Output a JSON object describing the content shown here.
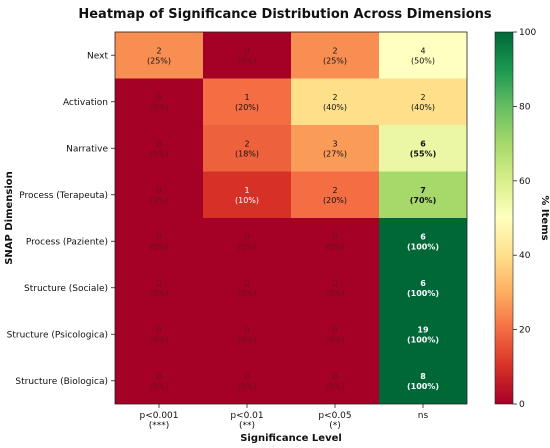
{
  "chart_data": {
    "type": "heatmap",
    "title": "Heatmap of Significance Distribution Across Dimensions",
    "xlabel": "Significance Level",
    "ylabel": "SNAP Dimension",
    "x_categories": [
      "p<0.001\n(***)",
      "p<0.01\n(**)",
      "p<0.05\n(*)",
      "ns"
    ],
    "y_categories": [
      "Next",
      "Activation",
      "Narrative",
      "Process (Terapeuta)",
      "Process (Paziente)",
      "Structure (Sociale)",
      "Structure (Psicologica)",
      "Structure (Biologica)"
    ],
    "counts": [
      [
        2,
        0,
        2,
        4
      ],
      [
        0,
        1,
        2,
        2
      ],
      [
        0,
        2,
        3,
        6
      ],
      [
        0,
        1,
        2,
        7
      ],
      [
        0,
        0,
        0,
        6
      ],
      [
        0,
        0,
        0,
        6
      ],
      [
        0,
        0,
        0,
        19
      ],
      [
        0,
        0,
        0,
        8
      ]
    ],
    "percentages": [
      [
        25,
        0,
        25,
        50
      ],
      [
        0,
        20,
        40,
        40
      ],
      [
        0,
        18,
        27,
        55
      ],
      [
        0,
        10,
        20,
        70
      ],
      [
        0,
        0,
        0,
        100
      ],
      [
        0,
        0,
        0,
        100
      ],
      [
        0,
        0,
        0,
        100
      ],
      [
        0,
        0,
        0,
        100
      ]
    ],
    "bold_cells": [
      [
        2,
        3
      ],
      [
        3,
        3
      ],
      [
        4,
        3
      ],
      [
        5,
        3
      ],
      [
        6,
        3
      ],
      [
        7,
        3
      ]
    ],
    "colorbar": {
      "label": "% Items",
      "min": 0,
      "max": 100,
      "ticks": [
        0,
        20,
        40,
        60,
        80,
        100
      ],
      "colormap": "RdYlGn"
    }
  }
}
